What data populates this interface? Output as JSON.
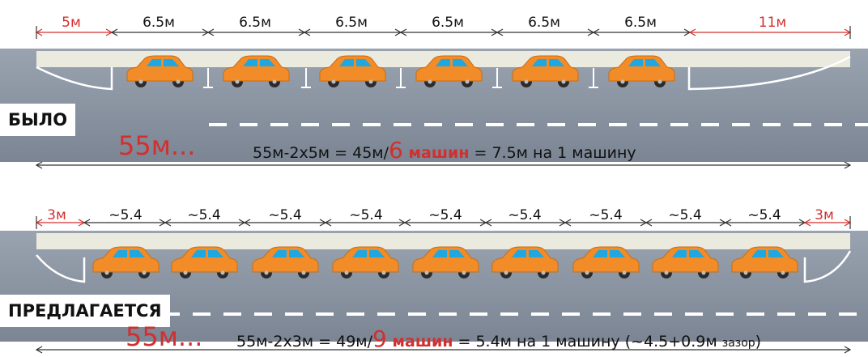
{
  "colors": {
    "road": "#8c95a3",
    "sidewalk": "#ebeadf",
    "car_body": "#f28c28",
    "car_window": "#1ea7e1",
    "accent_red": "#d32f2f"
  },
  "before": {
    "tag": "БЫЛО",
    "dims": [
      "5м",
      "6.5м",
      "6.5м",
      "6.5м",
      "6.5м",
      "6.5м",
      "6.5м",
      "11м"
    ],
    "total": "55м...",
    "formula": {
      "p1": "55м-2х5м = 45м/",
      "num": "6",
      "cars_word": " машин",
      "p2": " = 7.5м на 1 машину"
    },
    "car_count": 6
  },
  "after": {
    "tag": "ПРЕДЛАГАЕТСЯ",
    "dims": [
      "3м",
      "~5.4",
      "~5.4",
      "~5.4",
      "~5.4",
      "~5.4",
      "~5.4",
      "~5.4",
      "~5.4",
      "~5.4",
      "3м"
    ],
    "total": "55м...",
    "formula": {
      "p1": "55м-2х3м = 49м/",
      "num": "9",
      "cars_word": " машин",
      "p2": " = 5.4м на 1 машину (~4.5+0.9м ",
      "gap": "зазор",
      "p3": ")"
    },
    "car_count": 9
  }
}
